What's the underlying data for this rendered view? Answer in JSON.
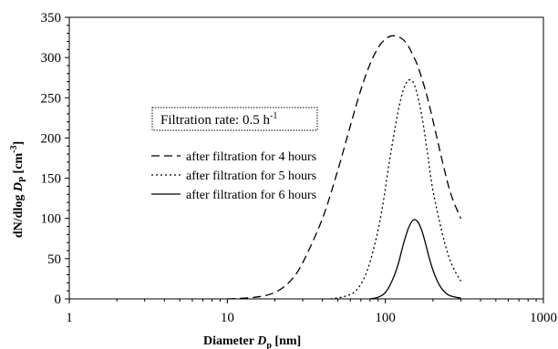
{
  "chart_data": {
    "type": "line",
    "x_scale": "log",
    "xlim": [
      1,
      1000
    ],
    "ylim": [
      0,
      350
    ],
    "grid": false,
    "legend_position": "left-center",
    "x_ticks": [
      "1",
      "10",
      "100",
      "1000"
    ],
    "y_ticks": [
      "0",
      "50",
      "100",
      "150",
      "200",
      "250",
      "300",
      "350"
    ],
    "xlabel_parts": [
      "Diameter ",
      "D",
      "p",
      " [nm]"
    ],
    "ylabel_parts": [
      "dN/dlog ",
      "D",
      "P",
      " [cm",
      "-3",
      "]"
    ],
    "annotation_parts": [
      "Filtration rate: 0.5 h",
      "-1"
    ],
    "series": [
      {
        "name": "after filtration for 4 hours",
        "dash": "dashed",
        "points": [
          [
            10,
            0
          ],
          [
            15,
            2
          ],
          [
            20,
            8
          ],
          [
            25,
            22
          ],
          [
            30,
            45
          ],
          [
            40,
            100
          ],
          [
            50,
            160
          ],
          [
            60,
            215
          ],
          [
            70,
            260
          ],
          [
            80,
            292
          ],
          [
            90,
            312
          ],
          [
            100,
            323
          ],
          [
            110,
            327
          ],
          [
            120,
            326
          ],
          [
            130,
            322
          ],
          [
            140,
            314
          ],
          [
            150,
            302
          ],
          [
            160,
            290
          ],
          [
            180,
            258
          ],
          [
            200,
            222
          ],
          [
            230,
            170
          ],
          [
            260,
            130
          ],
          [
            300,
            100
          ]
        ]
      },
      {
        "name": "after filtration for 5 hours",
        "dash": "dotted",
        "points": [
          [
            45,
            0
          ],
          [
            55,
            3
          ],
          [
            65,
            10
          ],
          [
            75,
            30
          ],
          [
            85,
            65
          ],
          [
            95,
            110
          ],
          [
            105,
            165
          ],
          [
            115,
            212
          ],
          [
            125,
            248
          ],
          [
            135,
            268
          ],
          [
            145,
            272
          ],
          [
            155,
            262
          ],
          [
            170,
            228
          ],
          [
            185,
            180
          ],
          [
            200,
            135
          ],
          [
            230,
            80
          ],
          [
            260,
            45
          ],
          [
            300,
            22
          ]
        ]
      },
      {
        "name": "after filtration for 6 hours",
        "dash": "solid",
        "points": [
          [
            80,
            0
          ],
          [
            90,
            2
          ],
          [
            100,
            8
          ],
          [
            110,
            22
          ],
          [
            120,
            42
          ],
          [
            130,
            68
          ],
          [
            140,
            88
          ],
          [
            150,
            98
          ],
          [
            160,
            96
          ],
          [
            170,
            85
          ],
          [
            180,
            68
          ],
          [
            190,
            50
          ],
          [
            205,
            30
          ],
          [
            225,
            14
          ],
          [
            250,
            5
          ],
          [
            280,
            2
          ],
          [
            300,
            1
          ]
        ]
      }
    ]
  }
}
